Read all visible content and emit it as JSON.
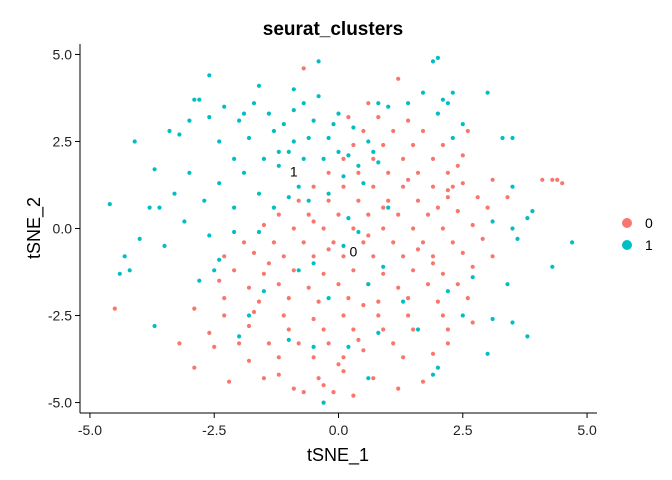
{
  "chart_data": {
    "type": "scatter",
    "title": "seurat_clusters",
    "xlabel": "tSNE_1",
    "ylabel": "tSNE_2",
    "xlim": [
      -5.2,
      5.2
    ],
    "ylim": [
      -5.3,
      5.3
    ],
    "xticks": [
      -5.0,
      -2.5,
      0.0,
      2.5,
      5.0
    ],
    "yticks": [
      -5.0,
      -2.5,
      0.0,
      2.5,
      5.0
    ],
    "xtick_labels": [
      "-5.0",
      "-2.5",
      "0.0",
      "2.5",
      "5.0"
    ],
    "ytick_labels": [
      "-5.0",
      "-2.5",
      "0.0",
      "2.5",
      "5.0"
    ],
    "grid": false,
    "legend_position": "right",
    "legend_entries": [
      "0",
      "1"
    ],
    "cluster_labels": [
      {
        "text": "0",
        "x": 0.3,
        "y": -0.8
      },
      {
        "text": "1",
        "x": -0.9,
        "y": 1.5
      }
    ],
    "series": [
      {
        "name": "0",
        "color": "#F8766D",
        "points": [
          [
            -1.5,
            -4.3
          ],
          [
            -2.2,
            -4.4
          ],
          [
            -0.7,
            -4.7
          ],
          [
            -0.9,
            -4.6
          ],
          [
            -0.1,
            -4.7
          ],
          [
            0.3,
            -4.8
          ],
          [
            1.2,
            -4.6
          ],
          [
            -0.4,
            -4.3
          ],
          [
            0.1,
            -4.1
          ],
          [
            0.7,
            -4.3
          ],
          [
            -1.2,
            -4.2
          ],
          [
            -2.9,
            -4.0
          ],
          [
            -1.8,
            -3.8
          ],
          [
            -1.2,
            -3.7
          ],
          [
            -0.5,
            -3.7
          ],
          [
            0.1,
            -3.7
          ],
          [
            0.5,
            -3.5
          ],
          [
            1.3,
            -3.7
          ],
          [
            1.9,
            -3.6
          ],
          [
            2.2,
            -3.3
          ],
          [
            1.1,
            -3.3
          ],
          [
            0.4,
            -3.2
          ],
          [
            -0.2,
            -3.3
          ],
          [
            -0.8,
            -3.3
          ],
          [
            -1.4,
            -3.3
          ],
          [
            -2.0,
            -3.3
          ],
          [
            -2.5,
            -3.4
          ],
          [
            -3.2,
            -3.3
          ],
          [
            -2.6,
            -3.0
          ],
          [
            -1.8,
            -2.8
          ],
          [
            -1.0,
            -2.9
          ],
          [
            -0.3,
            -2.9
          ],
          [
            0.3,
            -2.9
          ],
          [
            0.9,
            -2.9
          ],
          [
            1.5,
            -2.9
          ],
          [
            2.2,
            -2.9
          ],
          [
            2.7,
            -2.7
          ],
          [
            2.1,
            -2.5
          ],
          [
            1.4,
            -2.5
          ],
          [
            0.8,
            -2.5
          ],
          [
            0.1,
            -2.5
          ],
          [
            -0.5,
            -2.6
          ],
          [
            -1.1,
            -2.5
          ],
          [
            -1.7,
            -2.4
          ],
          [
            -2.3,
            -2.5
          ],
          [
            -2.9,
            -2.3
          ],
          [
            -2.3,
            -2.0
          ],
          [
            -1.6,
            -2.1
          ],
          [
            -1.0,
            -2.0
          ],
          [
            -0.4,
            -2.1
          ],
          [
            0.2,
            -2.0
          ],
          [
            0.8,
            -2.1
          ],
          [
            1.4,
            -2.0
          ],
          [
            2.0,
            -2.1
          ],
          [
            2.6,
            -2.0
          ],
          [
            2.4,
            -1.6
          ],
          [
            1.8,
            -1.6
          ],
          [
            1.2,
            -1.7
          ],
          [
            0.6,
            -1.6
          ],
          [
            0.0,
            -1.6
          ],
          [
            -0.6,
            -1.7
          ],
          [
            -1.2,
            -1.6
          ],
          [
            -1.8,
            -1.7
          ],
          [
            -2.4,
            -1.5
          ],
          [
            -2.1,
            -1.2
          ],
          [
            -1.5,
            -1.3
          ],
          [
            -0.9,
            -1.2
          ],
          [
            -0.3,
            -1.3
          ],
          [
            0.3,
            -1.2
          ],
          [
            0.9,
            -1.3
          ],
          [
            1.5,
            -1.2
          ],
          [
            2.1,
            -1.3
          ],
          [
            2.7,
            -1.1
          ],
          [
            3.1,
            -0.8
          ],
          [
            2.5,
            -0.7
          ],
          [
            1.9,
            -0.8
          ],
          [
            1.3,
            -0.8
          ],
          [
            0.7,
            -0.8
          ],
          [
            0.1,
            -0.8
          ],
          [
            -0.5,
            -0.8
          ],
          [
            -1.1,
            -0.8
          ],
          [
            -1.7,
            -0.7
          ],
          [
            -2.3,
            -0.8
          ],
          [
            -1.9,
            -0.4
          ],
          [
            -1.3,
            -0.4
          ],
          [
            -0.7,
            -0.4
          ],
          [
            -0.1,
            -0.4
          ],
          [
            0.5,
            -0.4
          ],
          [
            1.1,
            -0.4
          ],
          [
            1.7,
            -0.4
          ],
          [
            2.3,
            -0.4
          ],
          [
            2.9,
            -0.3
          ],
          [
            2.7,
            0.1
          ],
          [
            2.1,
            0.0
          ],
          [
            1.5,
            0.0
          ],
          [
            0.9,
            0.0
          ],
          [
            0.3,
            0.0
          ],
          [
            -0.3,
            0.0
          ],
          [
            -0.9,
            0.0
          ],
          [
            -1.5,
            0.1
          ],
          [
            -1.2,
            0.4
          ],
          [
            -0.6,
            0.4
          ],
          [
            0.0,
            0.4
          ],
          [
            0.6,
            0.4
          ],
          [
            1.2,
            0.4
          ],
          [
            1.8,
            0.4
          ],
          [
            2.4,
            0.5
          ],
          [
            3.0,
            0.6
          ],
          [
            3.4,
            0.9
          ],
          [
            2.8,
            0.9
          ],
          [
            2.2,
            0.9
          ],
          [
            1.6,
            0.8
          ],
          [
            1.0,
            0.8
          ],
          [
            0.4,
            0.8
          ],
          [
            -0.2,
            0.8
          ],
          [
            -0.8,
            0.8
          ],
          [
            -0.5,
            1.2
          ],
          [
            0.1,
            1.2
          ],
          [
            0.7,
            1.2
          ],
          [
            1.3,
            1.2
          ],
          [
            1.9,
            1.2
          ],
          [
            2.5,
            1.3
          ],
          [
            3.1,
            1.4
          ],
          [
            2.2,
            1.1
          ],
          [
            2.3,
            1.2
          ],
          [
            2.2,
            1.6
          ],
          [
            1.6,
            1.6
          ],
          [
            1.0,
            1.6
          ],
          [
            0.4,
            1.6
          ],
          [
            -0.2,
            1.6
          ],
          [
            0.1,
            2.0
          ],
          [
            0.7,
            2.0
          ],
          [
            1.3,
            2.0
          ],
          [
            1.9,
            2.0
          ],
          [
            2.5,
            2.1
          ],
          [
            2.1,
            2.4
          ],
          [
            1.5,
            2.4
          ],
          [
            0.9,
            2.4
          ],
          [
            0.3,
            2.4
          ],
          [
            0.5,
            2.8
          ],
          [
            1.1,
            2.8
          ],
          [
            1.7,
            2.8
          ],
          [
            2.6,
            2.8
          ],
          [
            0.2,
            3.2
          ],
          [
            0.8,
            3.2
          ],
          [
            1.4,
            3.1
          ],
          [
            0.6,
            3.6
          ],
          [
            1.2,
            4.3
          ],
          [
            -0.7,
            4.6
          ],
          [
            4.3,
            1.4
          ],
          [
            4.5,
            1.3
          ],
          [
            4.4,
            1.4
          ],
          [
            4.1,
            1.4
          ],
          [
            -4.5,
            -2.3
          ],
          [
            2.4,
            1.8
          ],
          [
            0.0,
            -3.9
          ],
          [
            1.7,
            -4.4
          ],
          [
            -0.3,
            -4.5
          ],
          [
            0.5,
            -2.2
          ],
          [
            1.9,
            -1.0
          ],
          [
            -1.4,
            -1.0
          ],
          [
            -0.2,
            -0.6
          ],
          [
            0.6,
            -0.2
          ],
          [
            -0.5,
            0.2
          ],
          [
            0.9,
            0.6
          ],
          [
            1.6,
            -0.6
          ],
          [
            2.0,
            0.6
          ],
          [
            1.4,
            1.4
          ]
        ]
      },
      {
        "name": "1",
        "color": "#00BFC4",
        "points": [
          [
            -4.6,
            0.7
          ],
          [
            -4.3,
            -0.8
          ],
          [
            -4.4,
            -1.3
          ],
          [
            -4.2,
            -1.2
          ],
          [
            -4.0,
            -0.3
          ],
          [
            -4.1,
            2.5
          ],
          [
            -3.7,
            1.7
          ],
          [
            -3.8,
            0.6
          ],
          [
            -3.5,
            -0.5
          ],
          [
            -3.6,
            0.6
          ],
          [
            -3.3,
            1.0
          ],
          [
            -3.4,
            2.8
          ],
          [
            -3.2,
            2.7
          ],
          [
            -3.0,
            3.1
          ],
          [
            -3.0,
            1.6
          ],
          [
            -3.1,
            0.2
          ],
          [
            -2.9,
            3.7
          ],
          [
            -2.8,
            3.7
          ],
          [
            -2.6,
            3.2
          ],
          [
            -2.6,
            4.4
          ],
          [
            -2.7,
            0.8
          ],
          [
            -2.6,
            -0.2
          ],
          [
            -2.4,
            1.3
          ],
          [
            -2.4,
            2.5
          ],
          [
            -2.3,
            3.5
          ],
          [
            -2.1,
            2.0
          ],
          [
            -2.1,
            0.6
          ],
          [
            -2.0,
            3.1
          ],
          [
            -1.9,
            3.3
          ],
          [
            -1.9,
            1.6
          ],
          [
            -1.8,
            2.6
          ],
          [
            -1.7,
            3.6
          ],
          [
            -1.6,
            4.1
          ],
          [
            -1.6,
            1.0
          ],
          [
            -1.5,
            2.0
          ],
          [
            -1.4,
            3.3
          ],
          [
            -1.3,
            2.8
          ],
          [
            -1.2,
            1.8
          ],
          [
            -1.2,
            2.2
          ],
          [
            -1.1,
            3.0
          ],
          [
            -1.0,
            0.9
          ],
          [
            -1.0,
            2.2
          ],
          [
            -0.9,
            2.5
          ],
          [
            -0.9,
            3.4
          ],
          [
            -0.8,
            1.2
          ],
          [
            -0.7,
            2.0
          ],
          [
            -0.6,
            2.6
          ],
          [
            -0.5,
            3.1
          ],
          [
            -0.4,
            3.8
          ],
          [
            -0.4,
            4.8
          ],
          [
            -0.3,
            2.0
          ],
          [
            -0.2,
            2.6
          ],
          [
            -0.1,
            3.0
          ],
          [
            0.0,
            2.2
          ],
          [
            0.1,
            1.5
          ],
          [
            0.2,
            2.1
          ],
          [
            0.3,
            2.9
          ],
          [
            0.4,
            1.8
          ],
          [
            0.5,
            1.3
          ],
          [
            0.6,
            2.5
          ],
          [
            0.7,
            2.2
          ],
          [
            0.8,
            1.9
          ],
          [
            0.8,
            3.6
          ],
          [
            -0.9,
            4.0
          ],
          [
            -0.7,
            3.6
          ],
          [
            0.0,
            3.3
          ],
          [
            1.0,
            3.5
          ],
          [
            1.4,
            3.6
          ],
          [
            1.7,
            3.9
          ],
          [
            1.9,
            4.8
          ],
          [
            2.0,
            4.9
          ],
          [
            2.0,
            3.3
          ],
          [
            2.1,
            3.7
          ],
          [
            2.2,
            3.6
          ],
          [
            2.3,
            2.6
          ],
          [
            2.5,
            3.0
          ],
          [
            2.3,
            3.9
          ],
          [
            3.0,
            3.9
          ],
          [
            3.3,
            2.6
          ],
          [
            3.5,
            2.6
          ],
          [
            3.5,
            1.2
          ],
          [
            3.1,
            0.2
          ],
          [
            3.5,
            0.0
          ],
          [
            3.6,
            -0.3
          ],
          [
            3.9,
            0.5
          ],
          [
            3.8,
            0.3
          ],
          [
            4.3,
            -1.1
          ],
          [
            4.7,
            -0.4
          ],
          [
            3.4,
            -1.6
          ],
          [
            3.1,
            -2.6
          ],
          [
            3.0,
            -3.6
          ],
          [
            3.5,
            -2.7
          ],
          [
            3.8,
            -3.1
          ],
          [
            1.9,
            -4.2
          ],
          [
            2.0,
            -4.0
          ],
          [
            0.6,
            -4.3
          ],
          [
            -0.3,
            -5.0
          ],
          [
            -2.0,
            -3.1
          ],
          [
            -2.5,
            -1.2
          ],
          [
            -2.4,
            -0.9
          ],
          [
            -3.7,
            -2.8
          ],
          [
            -2.1,
            -0.1
          ],
          [
            -1.6,
            -0.1
          ],
          [
            -1.3,
            0.6
          ],
          [
            -0.5,
            -1.0
          ],
          [
            0.1,
            -0.5
          ],
          [
            -0.2,
            -2.0
          ],
          [
            0.6,
            -1.6
          ],
          [
            0.9,
            -1.1
          ],
          [
            1.6,
            -2.9
          ],
          [
            2.2,
            -1.8
          ],
          [
            -1.0,
            -3.2
          ],
          [
            -0.5,
            -3.4
          ],
          [
            0.2,
            -3.4
          ],
          [
            -0.2,
            1.0
          ],
          [
            -0.6,
            0.8
          ],
          [
            2.5,
            -2.5
          ],
          [
            -1.8,
            -2.5
          ],
          [
            -2.8,
            -1.5
          ],
          [
            0.8,
            -3.0
          ],
          [
            1.3,
            -2.1
          ],
          [
            -0.8,
            -1.2
          ],
          [
            0.4,
            -0.1
          ],
          [
            -1.5,
            -1.8
          ],
          [
            2.7,
            -1.4
          ],
          [
            1.0,
            0.6
          ],
          [
            0.2,
            0.3
          ]
        ]
      }
    ]
  }
}
